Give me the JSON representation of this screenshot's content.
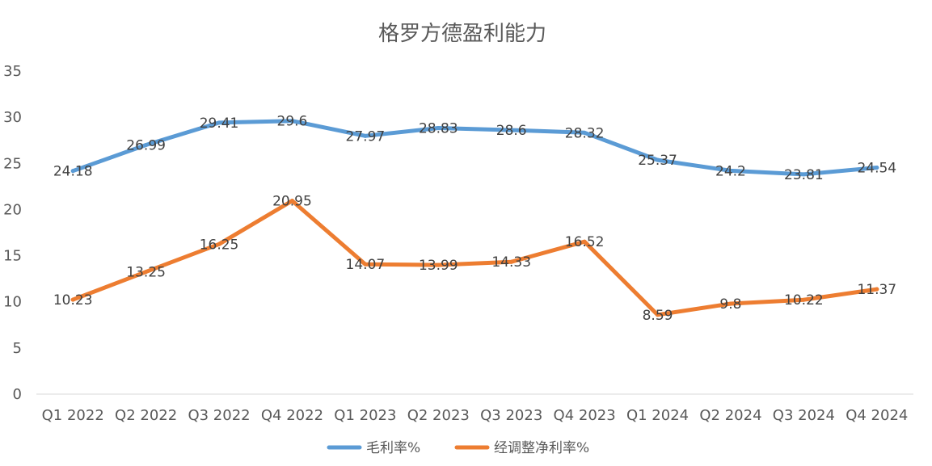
{
  "chart_data": {
    "type": "line",
    "title": "格罗方德盈利能力",
    "categories": [
      "Q1 2022",
      "Q2 2022",
      "Q3 2022",
      "Q4 2022",
      "Q1 2023",
      "Q2 2023",
      "Q3 2023",
      "Q4 2023",
      "Q1 2024",
      "Q2 2024",
      "Q3 2024",
      "Q4 2024"
    ],
    "y_ticks": [
      "0",
      "5",
      "10",
      "15",
      "20",
      "25",
      "30",
      "35"
    ],
    "ylim": [
      0,
      35
    ],
    "grid": false,
    "legend_position": "bottom",
    "series": [
      {
        "name": "毛利率%",
        "color": "#5B9BD5",
        "values": [
          24.18,
          26.99,
          29.41,
          29.6,
          27.97,
          28.83,
          28.6,
          28.32,
          25.37,
          24.2,
          23.81,
          24.54
        ],
        "labels": [
          "24.18",
          "26.99",
          "29.41",
          "29.6",
          "27.97",
          "28.83",
          "28.6",
          "28.32",
          "25.37",
          "24.2",
          "23.81",
          "24.54"
        ]
      },
      {
        "name": "经调整净利率%",
        "color": "#ED7D31",
        "values": [
          10.23,
          13.25,
          16.25,
          20.95,
          14.07,
          13.99,
          14.33,
          16.52,
          8.59,
          9.8,
          10.22,
          11.37
        ],
        "labels": [
          "10.23",
          "13.25",
          "16.25",
          "20.95",
          "14.07",
          "13.99",
          "14.33",
          "16.52",
          "8.59",
          "9.8",
          "10.22",
          "11.37"
        ]
      }
    ]
  }
}
